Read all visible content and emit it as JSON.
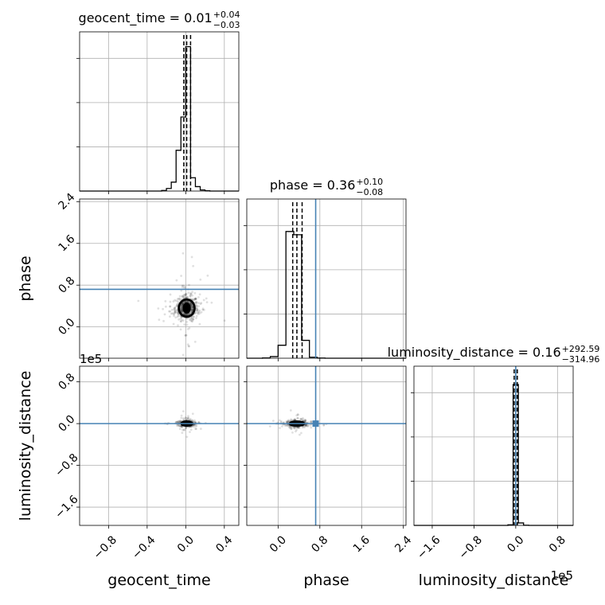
{
  "chart_data": {
    "type": "corner",
    "parameters": [
      {
        "name": "geocent_time",
        "axis_label": "geocent_time",
        "range": [
          -1.1,
          0.55
        ],
        "ticks": [
          -0.8,
          -0.4,
          0.0,
          0.4
        ],
        "tick_labels": [
          "−0.8",
          "−0.4",
          "0.0",
          "0.4"
        ],
        "truth": null
      },
      {
        "name": "phase",
        "axis_label": "phase",
        "range": [
          -0.6,
          2.45
        ],
        "ticks": [
          0.0,
          0.8,
          1.6,
          2.4
        ],
        "tick_labels": [
          "0.0",
          "0.8",
          "1.6",
          "2.4"
        ],
        "truth": 0.72
      },
      {
        "name": "luminosity_distance",
        "axis_label": "luminosity_distance",
        "range": [
          -1.95,
          1.1
        ],
        "ticks": [
          -1.6,
          -0.8,
          0.0,
          0.8
        ],
        "tick_labels": [
          "−1.6",
          "−0.8",
          "0.0",
          "0.8"
        ],
        "truth": 0.0,
        "offset_text": "1e5"
      }
    ],
    "titles": [
      {
        "param": "geocent_time",
        "prefix": "geocent_time = 0.01",
        "sup": "+0.04",
        "sub": "−0.03"
      },
      {
        "param": "phase",
        "prefix": "phase = 0.36",
        "sup": "+0.10",
        "sub": "−0.08"
      },
      {
        "param": "luminosity_distance",
        "prefix": "luminosity_distance = 0.16",
        "sup": "+292.59",
        "sub": "−314.96"
      }
    ],
    "histograms": [
      {
        "param": "geocent_time",
        "edges": [
          -0.25,
          -0.2,
          -0.15,
          -0.1,
          -0.05,
          0.0,
          0.05,
          0.1,
          0.15,
          0.2,
          0.25
        ],
        "counts": [
          0.8,
          3.5,
          12,
          55,
          100,
          195,
          18,
          6,
          1.5,
          0.4
        ],
        "ymax": 215,
        "quantiles": [
          -0.02,
          0.01,
          0.05
        ]
      },
      {
        "param": "phase",
        "edges": [
          -0.3,
          -0.15,
          0.0,
          0.15,
          0.3,
          0.45,
          0.6,
          0.75,
          0.9
        ],
        "counts": [
          1,
          5,
          40,
          390,
          380,
          55,
          3,
          0.5
        ],
        "ymax": 490,
        "quantiles": [
          0.28,
          0.36,
          0.46
        ]
      },
      {
        "param": "luminosity_distance",
        "edges": [
          -0.15,
          -0.05,
          0.05,
          0.15,
          0.25
        ],
        "counts": [
          2,
          460,
          8,
          0.5
        ],
        "ymax": 520,
        "quantiles": [
          -0.03,
          0.0,
          0.03
        ]
      }
    ],
    "scatter": [
      {
        "x": "geocent_time",
        "y": "phase",
        "center": [
          0.01,
          0.36
        ],
        "spread": [
          0.06,
          0.12
        ],
        "n_points": 500
      },
      {
        "x": "geocent_time",
        "y": "luminosity_distance",
        "center": [
          0.01,
          0.0
        ],
        "spread": [
          0.04,
          0.03
        ],
        "n_points": 400
      },
      {
        "x": "phase",
        "y": "luminosity_distance",
        "center": [
          0.36,
          0.0
        ],
        "spread": [
          0.1,
          0.03
        ],
        "n_points": 400
      }
    ],
    "grid": true
  }
}
